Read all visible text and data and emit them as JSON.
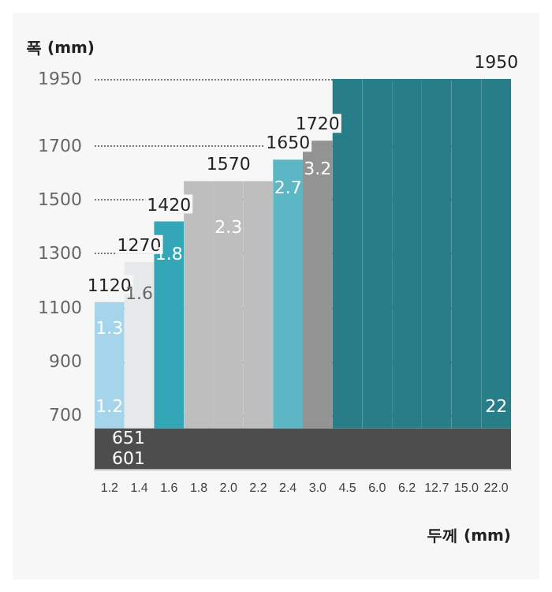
{
  "chart_data": {
    "type": "bar",
    "xlabel": "두께 (mm)",
    "ylabel": "폭 (mm)",
    "categories": [
      "1.2",
      "1.4",
      "1.6",
      "1.8",
      "2.0",
      "2.2",
      "2.4",
      "3.0",
      "4.5",
      "6.0",
      "6.2",
      "12.7",
      "15.0",
      "22.0"
    ],
    "values": [
      469,
      619,
      769,
      919,
      919,
      919,
      999,
      1069,
      1299,
      1299,
      1299,
      1299,
      1299,
      1299
    ],
    "base": [
      651,
      651,
      651,
      651,
      651,
      651,
      651,
      651,
      651,
      651,
      651,
      651,
      651,
      651
    ],
    "colors": [
      "#a6d4ea",
      "#e6eaeb",
      "#33a6b7",
      "#bebebe",
      "#bebebe",
      "#bebebe",
      "#5bb7c3",
      "#939393",
      "#277e88",
      "#277e88",
      "#277e88",
      "#277e88",
      "#277e88",
      "#277e88"
    ],
    "value_labels": [
      "1120",
      "1270",
      "1420",
      null,
      "1570",
      null,
      "1650",
      "1720",
      null,
      null,
      null,
      null,
      null,
      "1950"
    ],
    "ylim": [
      500,
      1950
    ],
    "yticks": [
      700,
      900,
      1100,
      1300,
      1500,
      1700,
      1950
    ],
    "grid": "y",
    "bands": [
      {
        "axis": "y",
        "from": 500,
        "to": 651,
        "color": "#4d4d4d",
        "label": "651\n601"
      }
    ],
    "annotations": [
      "1.3",
      "1.2",
      "1.6",
      "1.8",
      "2.3",
      "2.7",
      "3.2",
      "22"
    ]
  }
}
